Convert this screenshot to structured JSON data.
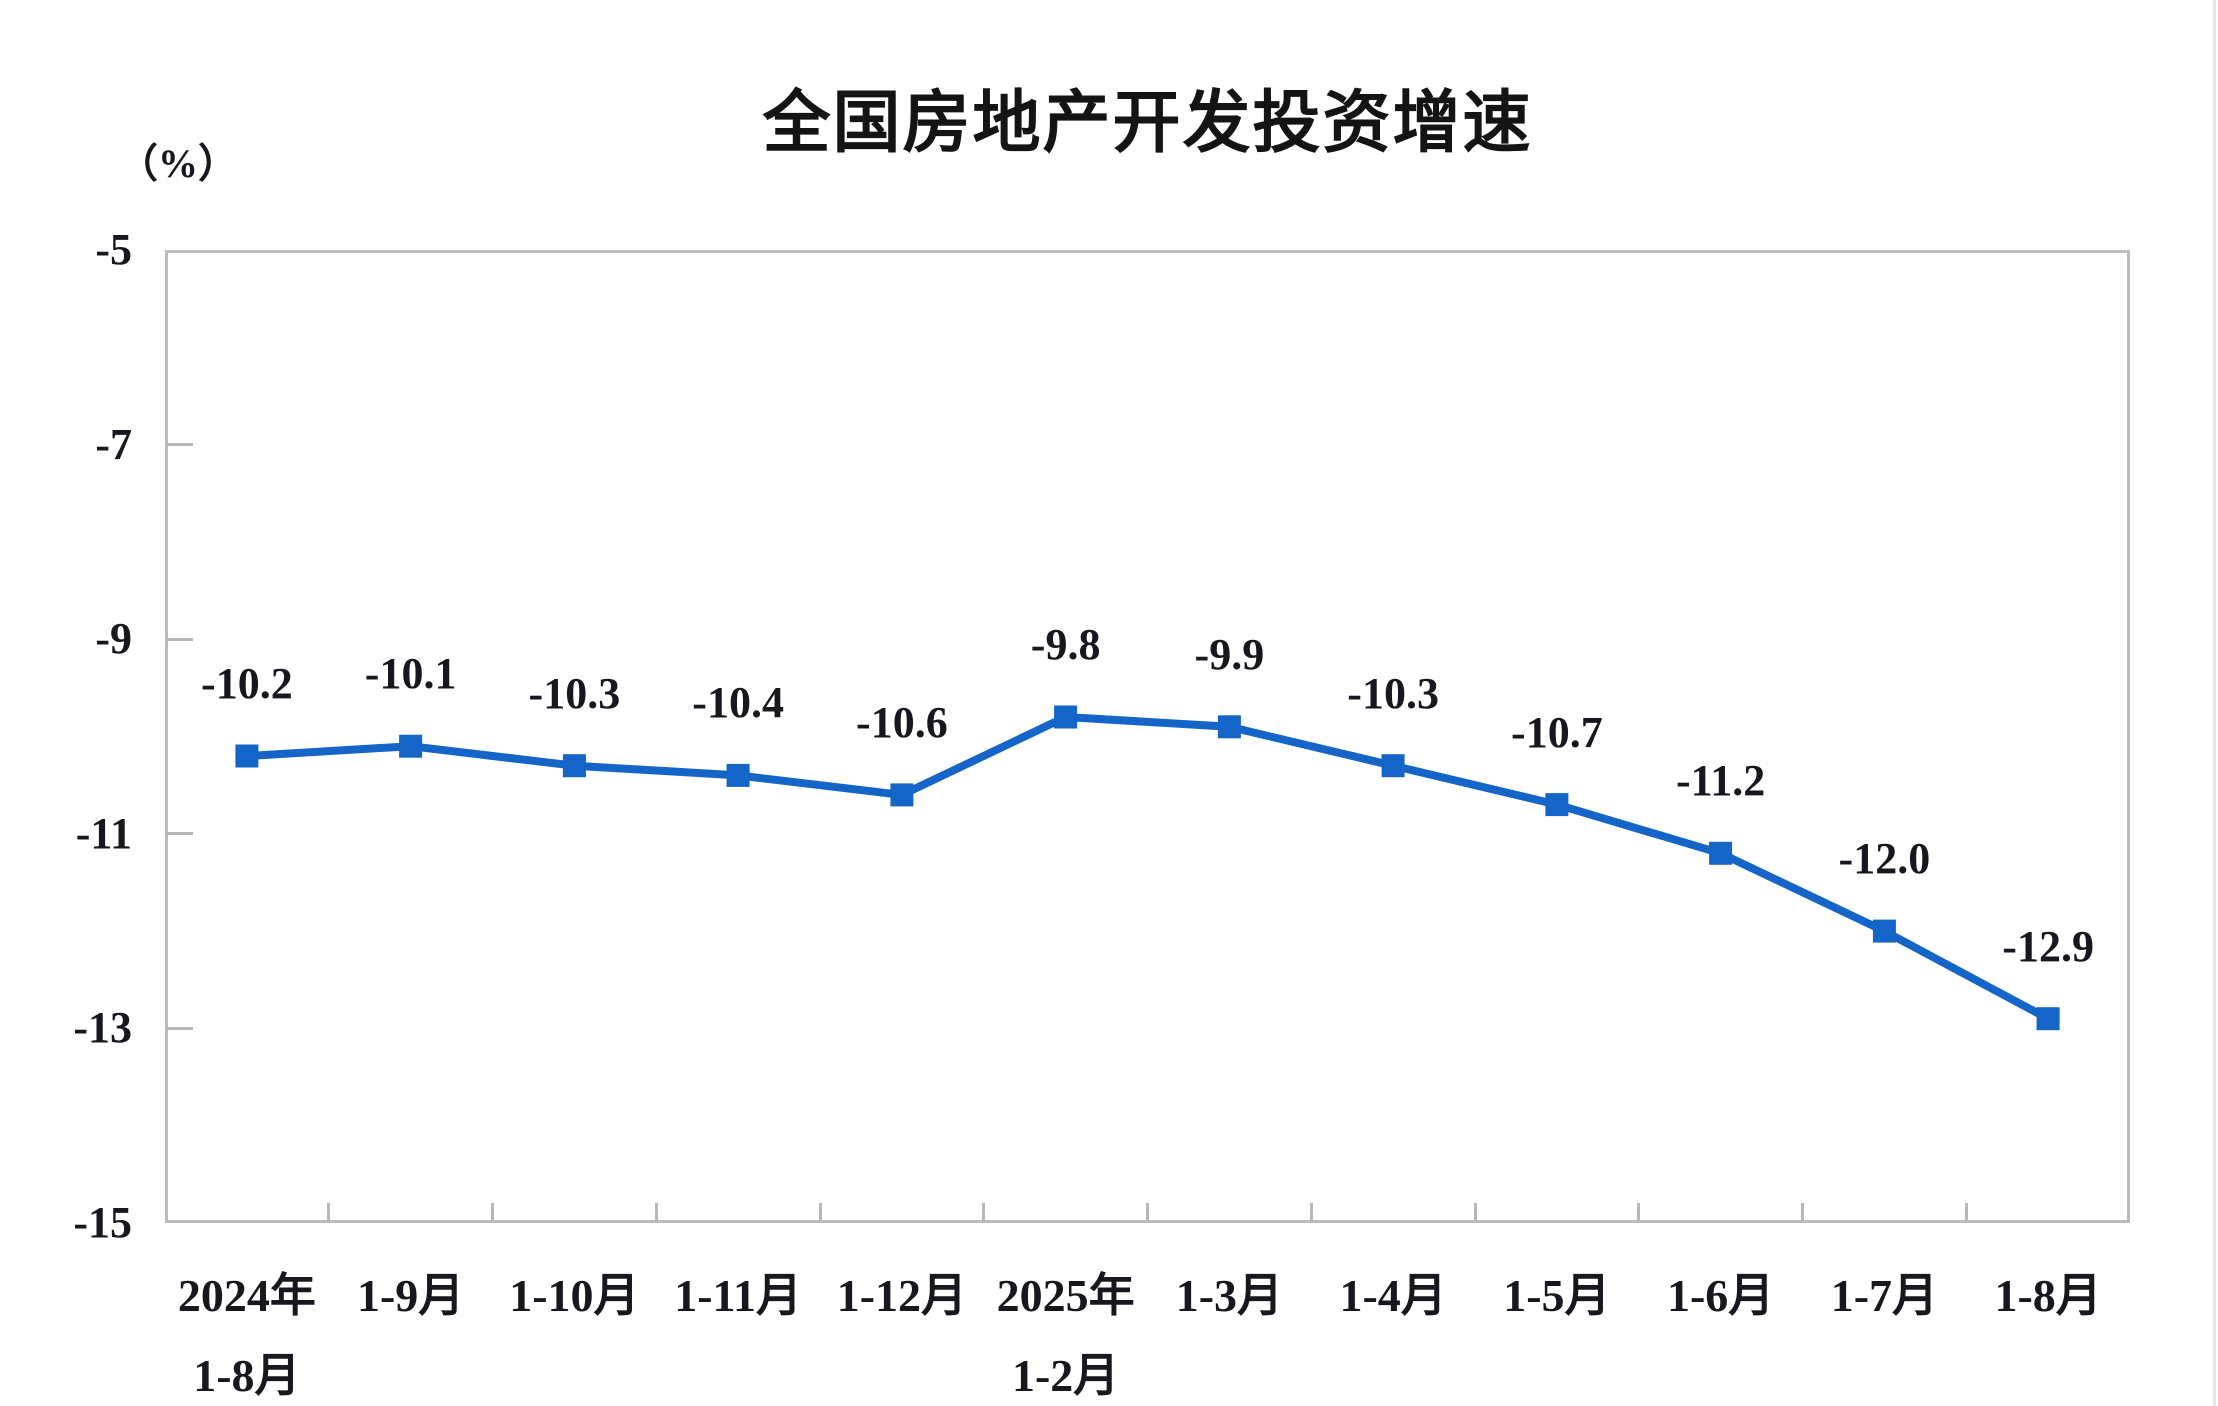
{
  "page": {
    "background": "#ffffff"
  },
  "chart_data": {
    "type": "line",
    "title": "全国房地产开发投资增速",
    "unit_label": "（%）",
    "categories": [
      [
        "2024年",
        "1-8月"
      ],
      [
        "1-9月"
      ],
      [
        "1-10月"
      ],
      [
        "1-11月"
      ],
      [
        "1-12月"
      ],
      [
        "2025年",
        "1-2月"
      ],
      [
        "1-3月"
      ],
      [
        "1-4月"
      ],
      [
        "1-5月"
      ],
      [
        "1-6月"
      ],
      [
        "1-7月"
      ],
      [
        "1-8月"
      ]
    ],
    "values": [
      -10.2,
      -10.1,
      -10.3,
      -10.4,
      -10.6,
      -9.8,
      -9.9,
      -10.3,
      -10.7,
      -11.2,
      -12.0,
      -12.9
    ],
    "point_labels": [
      "-10.2",
      "-10.1",
      "-10.3",
      "-10.4",
      "-10.6",
      "-9.8",
      "-9.9",
      "-10.3",
      "-10.7",
      "-11.2",
      "-12.0",
      "-12.9"
    ],
    "ylim": [
      -15,
      -5
    ],
    "yticks": [
      -5,
      -7,
      -9,
      -11,
      -13,
      -15
    ],
    "grid": false,
    "legend": "none",
    "marker_shape": "square",
    "colors": {
      "line": "#1565c8",
      "marker": "#1565c8",
      "axis": "#bcbcbc",
      "tick": "#b7b7b7",
      "text": "#17171f",
      "title": "#141414"
    }
  }
}
